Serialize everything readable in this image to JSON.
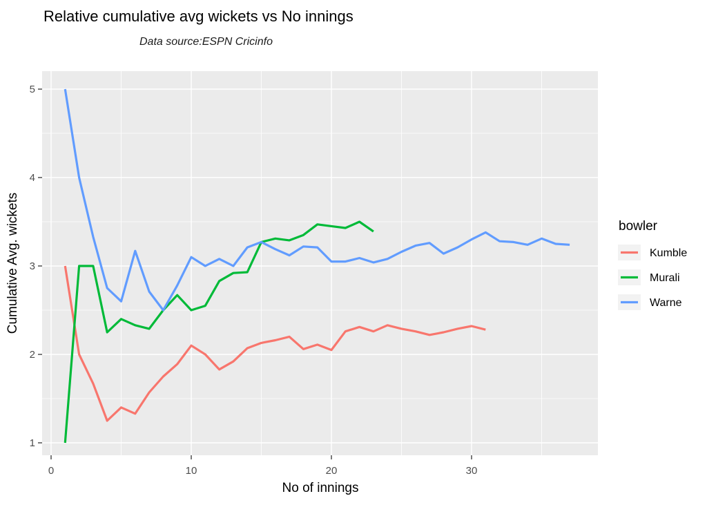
{
  "title": "Relative cumulative avg wickets vs No innings",
  "subtitle": "Data source:ESPN Cricinfo",
  "style": {
    "panel_bg": "#EBEBEB",
    "grid_color": "#FFFFFF",
    "tick_mark_color": "#333333",
    "tick_label_color": "#4D4D4D",
    "legend_key_bg": "#F2F2F2",
    "background": "#FFFFFF"
  },
  "chart_data": {
    "type": "line",
    "title": "Relative cumulative avg wickets vs No innings",
    "subtitle": "Data source:ESPN Cricinfo",
    "xlabel": "No of innings",
    "ylabel": "Cumulative Avg. wickets",
    "xlim": [
      -0.7,
      39.2
    ],
    "ylim": [
      0.86,
      5.2
    ],
    "x_ticks": [
      0,
      10,
      20,
      30
    ],
    "x_minor_ticks": [
      5,
      15,
      25,
      35
    ],
    "y_ticks": [
      1,
      2,
      3,
      4,
      5
    ],
    "y_minor_ticks": [
      1.5,
      2.5,
      3.5,
      4.5
    ],
    "grid": true,
    "legend_title": "bowler",
    "legend_position": "right",
    "colors": {
      "Kumble": "#F8766D",
      "Murali": "#00BA38",
      "Warne": "#619CFF"
    },
    "series": [
      {
        "name": "Kumble",
        "x": [
          1,
          2,
          3,
          4,
          5,
          6,
          7,
          8,
          9,
          10,
          11,
          12,
          13,
          14,
          15,
          16,
          17,
          18,
          19,
          20,
          21,
          22,
          23,
          24,
          25,
          26,
          27,
          28,
          29,
          30,
          31
        ],
        "values": [
          3.0,
          2.0,
          1.67,
          1.25,
          1.4,
          1.33,
          1.57,
          1.75,
          1.89,
          2.1,
          2.0,
          1.83,
          1.92,
          2.07,
          2.13,
          2.16,
          2.2,
          2.06,
          2.11,
          2.05,
          2.26,
          2.31,
          2.26,
          2.33,
          2.29,
          2.26,
          2.22,
          2.25,
          2.29,
          2.32,
          2.28
        ]
      },
      {
        "name": "Murali",
        "x": [
          1,
          2,
          3,
          4,
          5,
          6,
          7,
          8,
          9,
          10,
          11,
          12,
          13,
          14,
          15,
          16,
          17,
          18,
          19,
          20,
          21,
          22,
          23
        ],
        "values": [
          1.0,
          3.0,
          3.0,
          2.25,
          2.4,
          2.33,
          2.29,
          2.5,
          2.67,
          2.5,
          2.55,
          2.83,
          2.92,
          2.93,
          3.27,
          3.31,
          3.29,
          3.35,
          3.47,
          3.45,
          3.43,
          3.5,
          3.39
        ]
      },
      {
        "name": "Warne",
        "x": [
          1,
          2,
          3,
          4,
          5,
          6,
          7,
          8,
          9,
          10,
          11,
          12,
          13,
          14,
          15,
          16,
          17,
          18,
          19,
          20,
          21,
          22,
          23,
          24,
          25,
          26,
          27,
          28,
          29,
          30,
          31,
          32,
          33,
          34,
          35,
          36,
          37
        ],
        "values": [
          5.0,
          4.0,
          3.33,
          2.75,
          2.6,
          3.17,
          2.71,
          2.5,
          2.78,
          3.1,
          3.0,
          3.08,
          3.0,
          3.21,
          3.27,
          3.19,
          3.12,
          3.22,
          3.21,
          3.05,
          3.05,
          3.09,
          3.04,
          3.08,
          3.16,
          3.23,
          3.26,
          3.14,
          3.21,
          3.3,
          3.38,
          3.28,
          3.27,
          3.24,
          3.31,
          3.25,
          3.24
        ]
      }
    ]
  }
}
